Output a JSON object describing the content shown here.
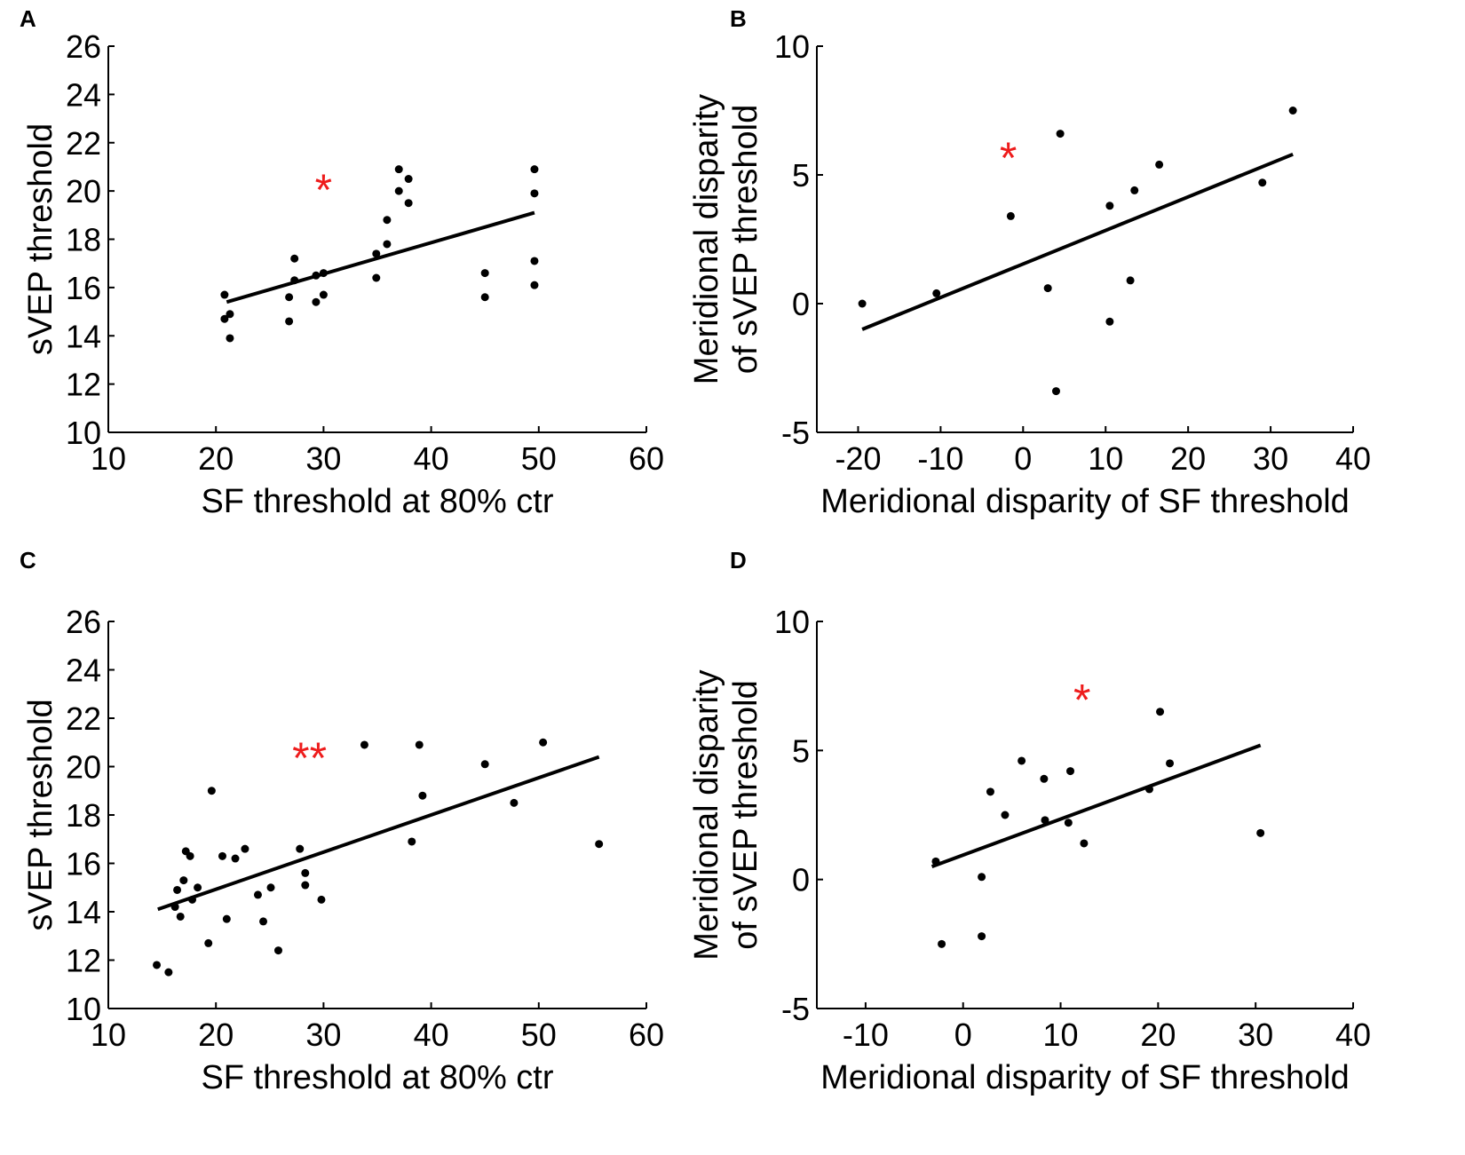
{
  "figure": {
    "background": "#ffffff",
    "marker_color": "#000000",
    "significance_color": "#ee1c1c"
  },
  "chart_data": [
    {
      "panel": "A",
      "type": "scatter",
      "xlabel": "SF threshold at 80% ctr",
      "ylabel": "sVEP threshold",
      "xlim": [
        10,
        60
      ],
      "ylim": [
        10,
        26
      ],
      "xticks": [
        10,
        20,
        30,
        40,
        50,
        60
      ],
      "yticks": [
        10,
        12,
        14,
        16,
        18,
        20,
        22,
        24,
        26
      ],
      "significance": "*",
      "significance_at": [
        30,
        20.3
      ],
      "points": [
        [
          20.8,
          15.7
        ],
        [
          20.8,
          14.7
        ],
        [
          21.3,
          14.9
        ],
        [
          21.3,
          13.9
        ],
        [
          26.8,
          15.6
        ],
        [
          26.8,
          14.6
        ],
        [
          27.3,
          17.2
        ],
        [
          27.3,
          16.3
        ],
        [
          29.3,
          16.5
        ],
        [
          29.3,
          15.4
        ],
        [
          30.0,
          16.6
        ],
        [
          30.0,
          15.7
        ],
        [
          34.9,
          17.4
        ],
        [
          34.9,
          16.4
        ],
        [
          35.9,
          18.8
        ],
        [
          35.9,
          17.8
        ],
        [
          37.0,
          20.9
        ],
        [
          37.0,
          20.0
        ],
        [
          37.9,
          20.5
        ],
        [
          37.9,
          19.5
        ],
        [
          45.0,
          16.6
        ],
        [
          45.0,
          15.6
        ],
        [
          49.6,
          20.9
        ],
        [
          49.6,
          19.9
        ],
        [
          49.6,
          17.1
        ],
        [
          49.6,
          16.1
        ]
      ],
      "fit_line": {
        "x": [
          21,
          49.6
        ],
        "y": [
          15.4,
          19.1
        ]
      }
    },
    {
      "panel": "B",
      "type": "scatter",
      "xlabel": "Meridional disparity of SF threshold",
      "ylabel": [
        "Meridional disparity",
        "of sVEP threshold"
      ],
      "xlim": [
        -25,
        40
      ],
      "ylim": [
        -5,
        10
      ],
      "xticks": [
        -20,
        -10,
        0,
        10,
        20,
        30,
        40
      ],
      "yticks": [
        -5,
        0,
        5,
        10
      ],
      "significance": "*",
      "significance_at": [
        -1.8,
        5.9
      ],
      "points": [
        [
          -19.5,
          0.0
        ],
        [
          -10.5,
          0.4
        ],
        [
          -1.5,
          3.4
        ],
        [
          3.0,
          0.6
        ],
        [
          4.0,
          -3.4
        ],
        [
          4.5,
          6.6
        ],
        [
          10.5,
          3.8
        ],
        [
          10.5,
          -0.7
        ],
        [
          13.0,
          0.9
        ],
        [
          13.5,
          4.4
        ],
        [
          16.5,
          5.4
        ],
        [
          29.0,
          4.7
        ],
        [
          32.7,
          7.5
        ]
      ],
      "fit_line": {
        "x": [
          -19.5,
          32.7
        ],
        "y": [
          -1.0,
          5.8
        ]
      }
    },
    {
      "panel": "C",
      "type": "scatter",
      "xlabel": "SF threshold at 80% ctr",
      "ylabel": "sVEP threshold",
      "xlim": [
        10,
        60
      ],
      "ylim": [
        10,
        26
      ],
      "xticks": [
        10,
        20,
        30,
        40,
        50,
        60
      ],
      "yticks": [
        10,
        12,
        14,
        16,
        18,
        20,
        22,
        24,
        26
      ],
      "significance": "**",
      "significance_at": [
        28.7,
        20.6
      ],
      "points": [
        [
          14.5,
          11.8
        ],
        [
          15.6,
          11.5
        ],
        [
          16.2,
          14.2
        ],
        [
          16.4,
          14.9
        ],
        [
          16.7,
          13.8
        ],
        [
          17.0,
          15.3
        ],
        [
          17.2,
          16.5
        ],
        [
          17.6,
          16.3
        ],
        [
          17.8,
          14.5
        ],
        [
          18.3,
          15.0
        ],
        [
          19.3,
          12.7
        ],
        [
          19.6,
          19.0
        ],
        [
          20.6,
          16.3
        ],
        [
          21.0,
          13.7
        ],
        [
          21.8,
          16.2
        ],
        [
          22.7,
          16.6
        ],
        [
          23.9,
          14.7
        ],
        [
          24.4,
          13.6
        ],
        [
          25.1,
          15.0
        ],
        [
          25.8,
          12.4
        ],
        [
          27.8,
          16.6
        ],
        [
          28.3,
          15.1
        ],
        [
          28.3,
          15.6
        ],
        [
          29.8,
          14.5
        ],
        [
          33.8,
          20.9
        ],
        [
          38.2,
          16.9
        ],
        [
          38.9,
          20.9
        ],
        [
          39.2,
          18.8
        ],
        [
          45.0,
          20.1
        ],
        [
          47.7,
          18.5
        ],
        [
          50.4,
          21.0
        ],
        [
          55.6,
          16.8
        ]
      ],
      "fit_line": {
        "x": [
          14.6,
          55.6
        ],
        "y": [
          14.1,
          20.4
        ]
      }
    },
    {
      "panel": "D",
      "type": "scatter",
      "xlabel": "Meridional disparity of SF threshold",
      "ylabel": [
        "Meridional disparity",
        "of sVEP threshold"
      ],
      "xlim": [
        -15,
        40
      ],
      "ylim": [
        -5,
        10
      ],
      "xticks": [
        -10,
        0,
        10,
        20,
        30,
        40
      ],
      "yticks": [
        -5,
        0,
        5,
        10
      ],
      "significance": "*",
      "significance_at": [
        12.2,
        7.2
      ],
      "points": [
        [
          -2.8,
          0.7
        ],
        [
          -2.2,
          -2.5
        ],
        [
          1.9,
          0.1
        ],
        [
          1.9,
          -2.2
        ],
        [
          2.8,
          3.4
        ],
        [
          4.3,
          2.5
        ],
        [
          6.0,
          4.6
        ],
        [
          8.3,
          3.9
        ],
        [
          8.4,
          2.3
        ],
        [
          10.8,
          2.2
        ],
        [
          11.0,
          4.2
        ],
        [
          12.4,
          1.4
        ],
        [
          19.1,
          3.5
        ],
        [
          20.2,
          6.5
        ],
        [
          21.2,
          4.5
        ],
        [
          30.5,
          1.8
        ]
      ],
      "fit_line": {
        "x": [
          -3.2,
          30.5
        ],
        "y": [
          0.5,
          5.2
        ]
      }
    }
  ]
}
